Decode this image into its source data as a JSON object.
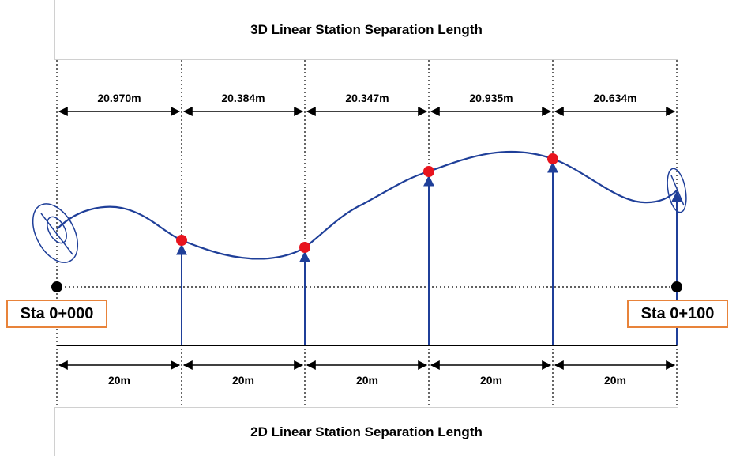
{
  "top_title": "3D Linear Station Separation Length",
  "bottom_title": "2D Linear Station Separation Length",
  "stations": {
    "start": "Sta 0+000",
    "end": "Sta 0+100"
  },
  "segments_3d": [
    "20.970m",
    "20.384m",
    "20.347m",
    "20.935m",
    "20.634m"
  ],
  "segments_2d": [
    "20m",
    "20m",
    "20m",
    "20m",
    "20m"
  ],
  "colors": {
    "curve": "#1f3f99",
    "station_point": "#e8141e",
    "endpoint": "#000000",
    "station_box_border": "#e8833a"
  }
}
